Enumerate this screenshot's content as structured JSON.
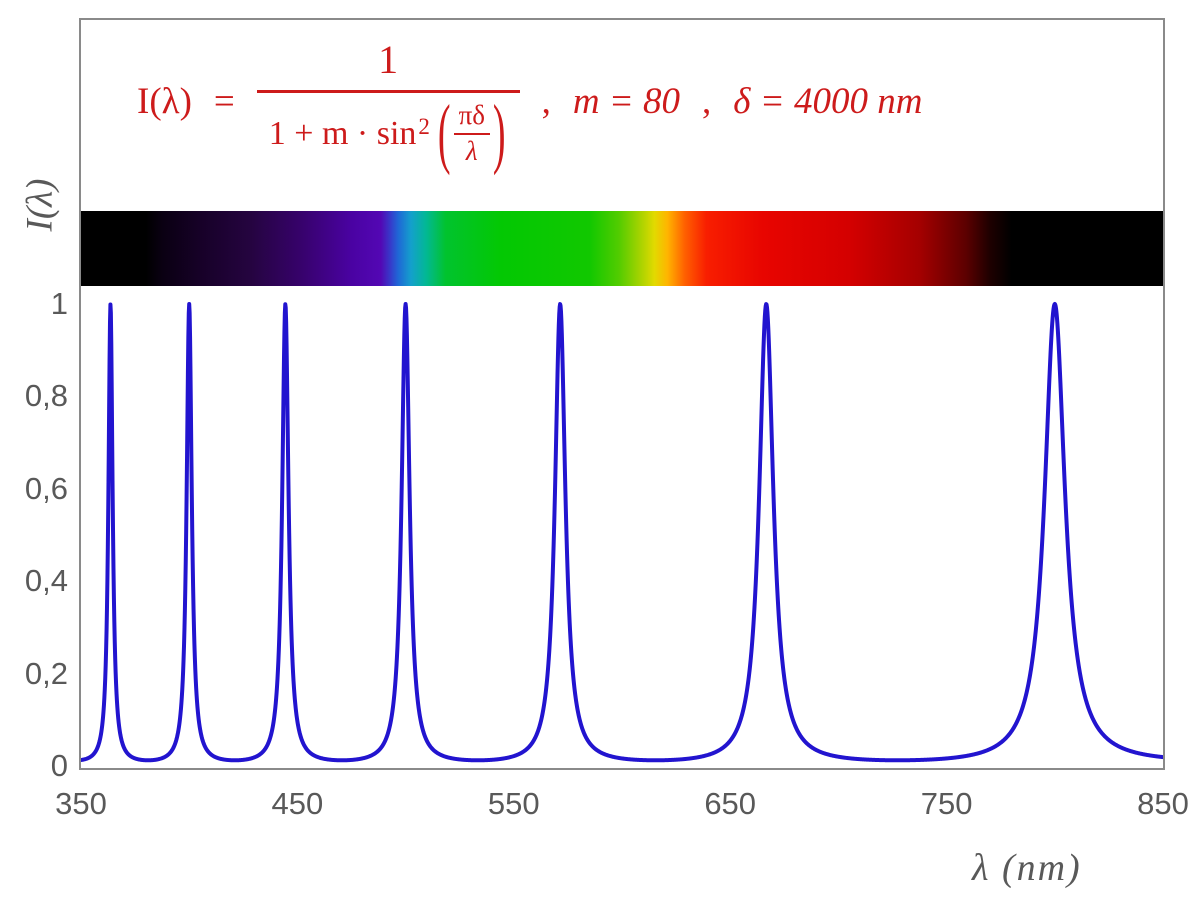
{
  "chart_data": {
    "type": "line",
    "title_formula": "I(λ) = 1 / (1 + m·sin²(πδ/λ))",
    "params": {
      "m": 80,
      "delta_nm": 4000
    },
    "x": {
      "label": "λ  (nm)",
      "min": 350,
      "max": 850,
      "ticks": [
        350,
        450,
        550,
        650,
        750,
        850
      ],
      "tick_labels": [
        "350",
        "450",
        "550",
        "650",
        "750",
        "850"
      ]
    },
    "y": {
      "label": "I(λ)",
      "min": 0,
      "max": 1,
      "ticks": [
        0,
        0.2,
        0.4,
        0.6,
        0.8,
        1
      ],
      "tick_labels": [
        "0",
        "0,2",
        "0,4",
        "0,6",
        "0,8",
        "1"
      ]
    },
    "grid": false,
    "legend": false,
    "peaks_nm": [
      363.6,
      400.0,
      444.4,
      500.0,
      571.4,
      666.7,
      800.0
    ],
    "peak_value": 1,
    "baseline_value": 0.012,
    "curve_color": "#2214cf",
    "axis_text_color": "#595959",
    "border_color": "#8a8a8a",
    "formula": {
      "color": "#cd1b1b",
      "lhs": "I(λ)",
      "eq": "=",
      "numerator": "1",
      "denom_text": "1 + m · sin",
      "denom_sup": "2",
      "lparen": "(",
      "rparen": ")",
      "inner_num": "πδ",
      "inner_den": "λ",
      "sep1": ",",
      "m_def": "m = 80",
      "sep2": ",",
      "delta_def": "δ = 4000 nm"
    },
    "spectrum_bar": {
      "description": "visible light spectrum strip spanning 350-850 nm, black outside ~380-780 nm",
      "stops": [
        [
          0.0,
          "#000000"
        ],
        [
          0.06,
          "#000000"
        ],
        [
          0.075,
          "#0a0012"
        ],
        [
          0.111,
          "#170128"
        ],
        [
          0.157,
          "#250440"
        ],
        [
          0.204,
          "#37026c"
        ],
        [
          0.25,
          "#4a02a2"
        ],
        [
          0.277,
          "#5307b4"
        ],
        [
          0.287,
          "#3340cc"
        ],
        [
          0.293,
          "#1f66d6"
        ],
        [
          0.305,
          "#14a0cc"
        ],
        [
          0.319,
          "#02b894"
        ],
        [
          0.337,
          "#01c32e"
        ],
        [
          0.388,
          "#03c803"
        ],
        [
          0.47,
          "#11c800"
        ],
        [
          0.497,
          "#52cc00"
        ],
        [
          0.52,
          "#b4d400"
        ],
        [
          0.53,
          "#e2da00"
        ],
        [
          0.542,
          "#ffb400"
        ],
        [
          0.558,
          "#ff6000"
        ],
        [
          0.578,
          "#f81e00"
        ],
        [
          0.63,
          "#e80500"
        ],
        [
          0.71,
          "#d40000"
        ],
        [
          0.775,
          "#a40000"
        ],
        [
          0.818,
          "#5c0000"
        ],
        [
          0.84,
          "#1e0000"
        ],
        [
          0.86,
          "#000000"
        ],
        [
          1.0,
          "#000000"
        ]
      ]
    }
  }
}
